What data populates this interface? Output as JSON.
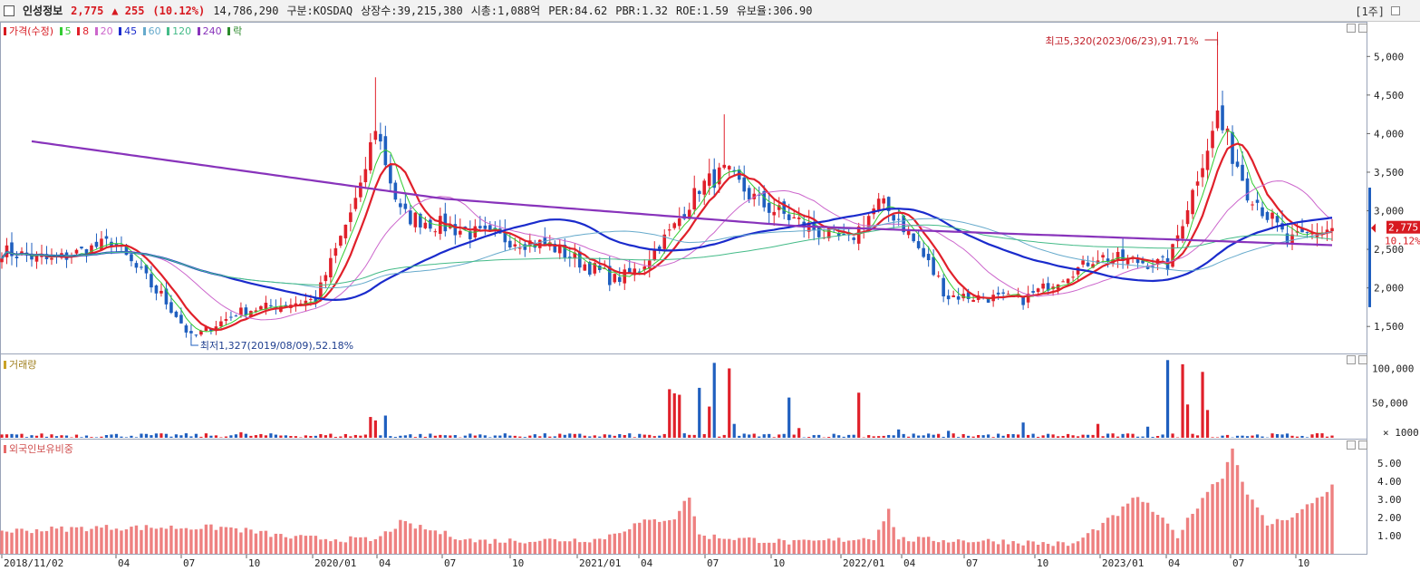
{
  "header": {
    "name": "인성정보",
    "price": "2,775",
    "change": "▲ 255",
    "change_pct": "(10.12%)",
    "volume": "14,786,290",
    "market": "구분:KOSDAQ",
    "shares": "상장수:39,215,380",
    "mktcap": "시총:1,088억",
    "per": "PER:84.62",
    "pbr": "PBR:1.32",
    "roe": "ROE:1.59",
    "reserve": "유보율:306.90",
    "period": "[1주]"
  },
  "legend": {
    "price": {
      "label": "가격(수정)",
      "color": "#d71920"
    },
    "ma": [
      {
        "label": "5",
        "color": "#33cc33"
      },
      {
        "label": "8",
        "color": "#e0202a"
      },
      {
        "label": "20",
        "color": "#cc66cc"
      },
      {
        "label": "45",
        "color": "#1a2bcc"
      },
      {
        "label": "60",
        "color": "#66aacc"
      },
      {
        "label": "120",
        "color": "#44bb88"
      },
      {
        "label": "240",
        "color": "#8833bb"
      }
    ],
    "fall": {
      "label": "락",
      "color": "#2a8a2a"
    },
    "volume_title": "거래량",
    "foreign_title": "외국인보유비중"
  },
  "annotations": {
    "high": "최고5,320(2023/06/23),91.71%",
    "low": "최저1,327(2019/08/09),52.18%",
    "last_price": "2,775",
    "last_pct": "10.12%"
  },
  "chart_data": [
    {
      "type": "candlestick",
      "name": "price",
      "x": [
        "2018-11-02",
        "2019-01",
        "2019-04",
        "2019-07",
        "2019-08-09",
        "2019-10",
        "2020-01",
        "2020-04",
        "2020-05",
        "2020-07",
        "2020-10",
        "2021-01",
        "2021-04",
        "2021-06",
        "2021-07",
        "2021-08",
        "2021-09",
        "2021-10",
        "2021-12",
        "2022-01",
        "2022-03",
        "2022-04",
        "2022-07",
        "2022-10",
        "2023-01",
        "2023-04",
        "2023-06-23",
        "2023-08",
        "2023-10",
        "2023-12"
      ],
      "close": [
        2480,
        2350,
        2600,
        1750,
        1327,
        1700,
        1850,
        3100,
        4100,
        2950,
        2700,
        2550,
        2100,
        2250,
        2800,
        3300,
        3500,
        3100,
        2700,
        2600,
        3100,
        2900,
        1900,
        1850,
        2400,
        2300,
        4200,
        3300,
        2600,
        2775
      ],
      "yaxis_ticks": [
        1500,
        2000,
        2500,
        3000,
        3500,
        4000,
        4500,
        5000
      ],
      "ylim": [
        1150,
        5450
      ],
      "high": {
        "value": 5320,
        "date": "2023/06/23",
        "pct": 91.71
      },
      "low": {
        "value": 1327,
        "date": "2019/08/09",
        "pct": 52.18
      }
    },
    {
      "type": "bar",
      "name": "volume",
      "yaxis_ticks": [
        "50,000",
        "100,000"
      ],
      "unit": "× 1000",
      "ylim": [
        0,
        115000
      ],
      "highlights": [
        {
          "date": "2021-08",
          "value": 108000
        },
        {
          "date": "2023-05",
          "value": 112000
        },
        {
          "date": "2020-04",
          "value": 30000
        },
        {
          "date": "2022-03",
          "value": 65000
        }
      ]
    },
    {
      "type": "bar",
      "name": "foreign_ownership_pct",
      "yaxis_ticks": [
        "1.00",
        "2.00",
        "3.00",
        "4.00",
        "5.00"
      ],
      "ylim": [
        0,
        6
      ],
      "values_start": 1.25,
      "values_peak": 5.8,
      "values_end": 3.7
    }
  ],
  "xaxis": {
    "labels": [
      "2018/11/02",
      "04",
      "07",
      "10",
      "2020/01",
      "04",
      "07",
      "10",
      "2021/01",
      "04",
      "07",
      "10",
      "2022/01",
      "04",
      "07",
      "10",
      "2023/01",
      "04",
      "07",
      "10"
    ]
  }
}
